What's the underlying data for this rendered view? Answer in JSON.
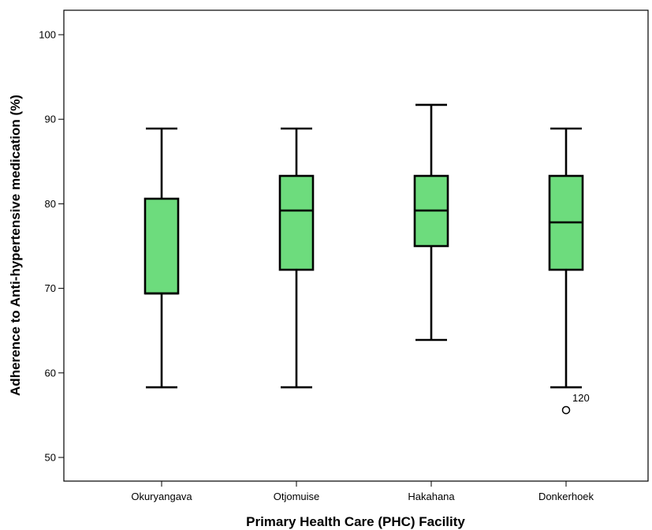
{
  "chart_data": {
    "type": "box",
    "title": "",
    "xlabel": "Primary Health Care (PHC) Facility",
    "ylabel": "Adherence to Anti-hypertensive medication (%)",
    "ylim": [
      47,
      103
    ],
    "yticks": [
      50,
      60,
      70,
      80,
      90,
      100
    ],
    "grid": false,
    "box_color": "#6ddc7d",
    "categories": [
      "Okuryangava",
      "Otjomuise",
      "Hakahana",
      "Donkerhoek"
    ],
    "boxes": [
      {
        "category": "Okuryangava",
        "min": 58.3,
        "q1": 69.4,
        "median": 69.4,
        "q3": 80.6,
        "max": 88.9,
        "outliers": []
      },
      {
        "category": "Otjomuise",
        "min": 58.3,
        "q1": 72.2,
        "median": 79.2,
        "q3": 83.3,
        "max": 88.9,
        "outliers": []
      },
      {
        "category": "Hakahana",
        "min": 63.9,
        "q1": 75.0,
        "median": 79.2,
        "q3": 83.3,
        "max": 91.7,
        "outliers": []
      },
      {
        "category": "Donkerhoek",
        "min": 58.3,
        "q1": 72.2,
        "median": 77.8,
        "q3": 83.3,
        "max": 88.9,
        "outliers": [
          {
            "value": 55.6,
            "label": "120"
          }
        ]
      }
    ]
  }
}
